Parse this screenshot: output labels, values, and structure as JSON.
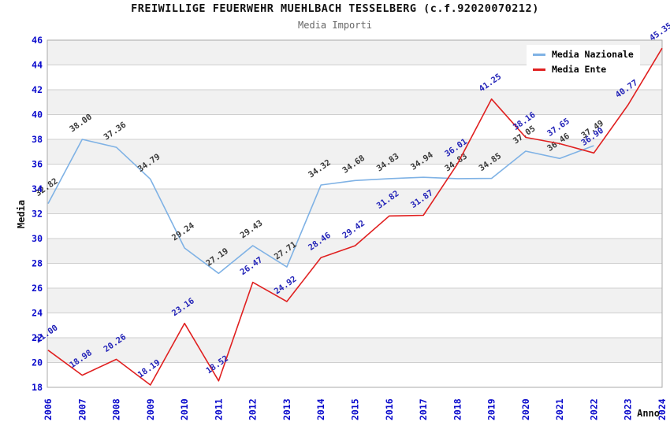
{
  "header": {
    "title": "FREIWILLIGE FEUERWEHR MUEHLBACH TESSELBERG (c.f.92020070212)",
    "subtitle": "Media Importi"
  },
  "legend": {
    "items": [
      {
        "label": "Media Nazionale",
        "color": "#7fb2e5"
      },
      {
        "label": "Media Ente",
        "color": "#e02020"
      }
    ]
  },
  "chart_data": {
    "type": "line",
    "title": "FREIWILLIGE FEUERWEHR MUEHLBACH TESSELBERG (c.f.92020070212)",
    "subtitle": "Media Importi",
    "xlabel": "Anno",
    "ylabel": "Media",
    "x": [
      2006,
      2007,
      2008,
      2009,
      2010,
      2011,
      2012,
      2013,
      2014,
      2015,
      2016,
      2017,
      2018,
      2019,
      2020,
      2021,
      2022,
      2023,
      2024
    ],
    "series": [
      {
        "name": "Media Nazionale",
        "color": "#7fb2e5",
        "label_color": "#3a3a3a",
        "values": [
          32.82,
          38.0,
          37.36,
          34.79,
          29.24,
          27.19,
          29.43,
          27.71,
          34.32,
          34.68,
          34.83,
          34.94,
          34.83,
          34.85,
          37.05,
          36.46,
          37.49,
          null,
          null
        ]
      },
      {
        "name": "Media Ente",
        "color": "#e02020",
        "label_color": "#2323b8",
        "values": [
          21.0,
          18.98,
          20.26,
          18.19,
          23.16,
          18.52,
          26.47,
          24.92,
          28.46,
          29.42,
          31.82,
          31.87,
          36.01,
          41.25,
          38.16,
          37.65,
          36.9,
          40.77,
          45.35
        ]
      }
    ],
    "ylim": [
      18,
      46
    ],
    "ytick_step": 2,
    "grid": true,
    "band_fill": "on",
    "legend_position": "top-right",
    "colors": {
      "tick_label": "#0a0acc",
      "band": "#f1f1f1",
      "grid_line": "#cfcfcf",
      "plot_border": "#a9a9a9",
      "axis_title": "#111111"
    }
  }
}
